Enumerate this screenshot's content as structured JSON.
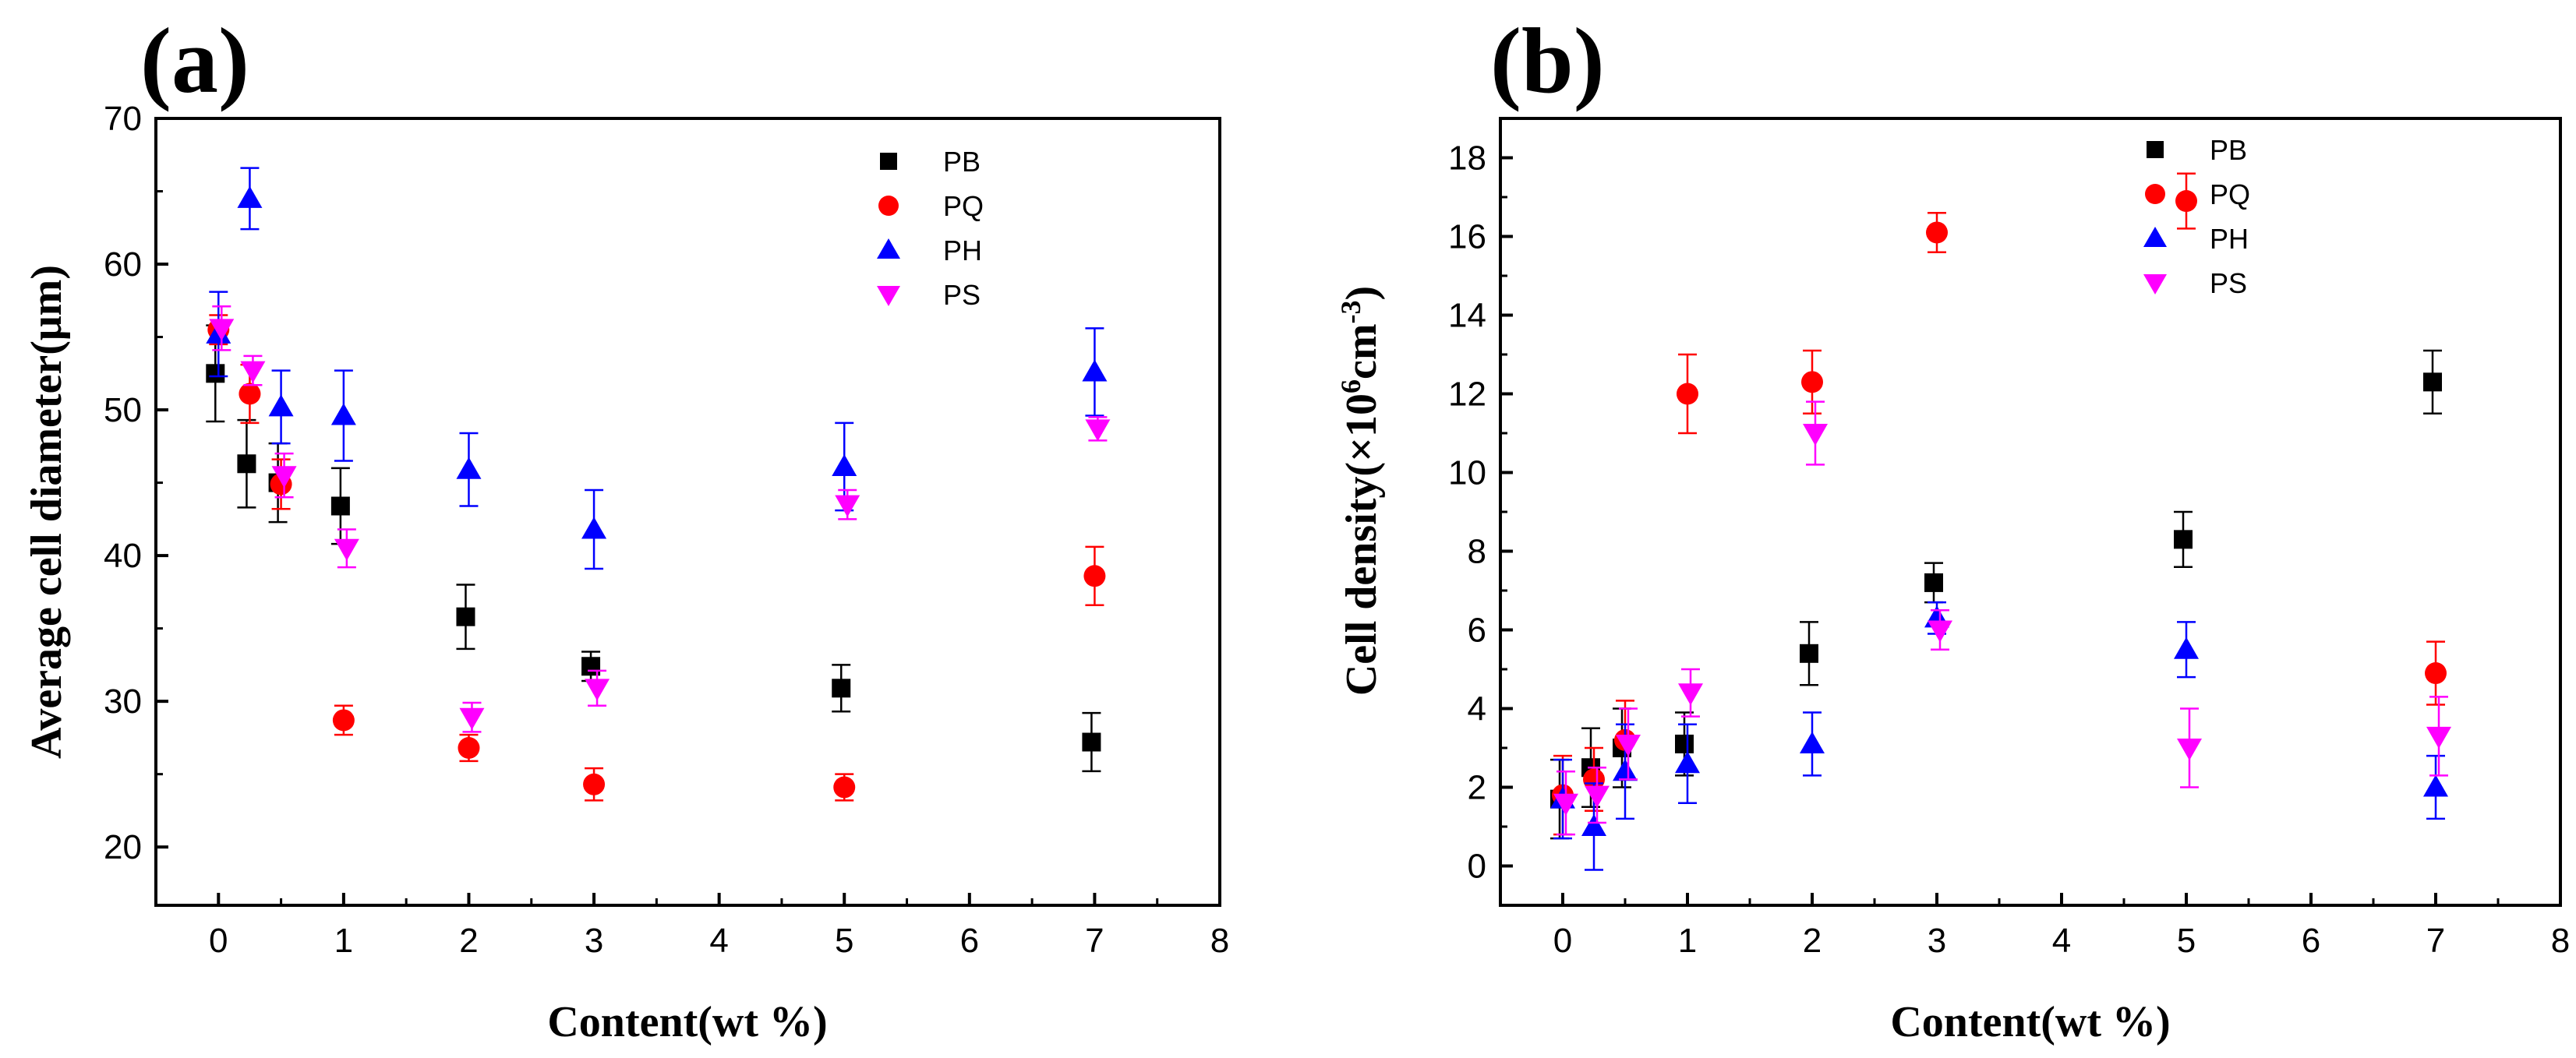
{
  "figure": {
    "panels": [
      "(a)",
      "(b)"
    ]
  },
  "chart_data": [
    {
      "type": "scatter",
      "panel_label": "(a)",
      "title": "",
      "xlabel": "Content(wt %)",
      "ylabel": "Average cell diameter(μm)",
      "xlim": [
        -0.5,
        8
      ],
      "ylim": [
        16,
        70
      ],
      "xticks": [
        "0",
        "1",
        "2",
        "3",
        "4",
        "5",
        "6",
        "7",
        "8"
      ],
      "yticks": [
        "20",
        "30",
        "40",
        "50",
        "60",
        "70"
      ],
      "legend_position": "top-right",
      "series": [
        {
          "name": "PB",
          "color": "#000000",
          "marker": "square",
          "points": [
            {
              "x": 0,
              "y": 52.5,
              "err": 3.3
            },
            {
              "x": 0.25,
              "y": 46.3,
              "err": 3.0
            },
            {
              "x": 0.5,
              "y": 45.0,
              "err": 2.7
            },
            {
              "x": 1,
              "y": 43.4,
              "err": 2.6
            },
            {
              "x": 2,
              "y": 35.8,
              "err": 2.2
            },
            {
              "x": 3,
              "y": 32.4,
              "err": 1.0
            },
            {
              "x": 5,
              "y": 30.9,
              "err": 1.6
            },
            {
              "x": 7,
              "y": 27.2,
              "err": 2.0
            }
          ]
        },
        {
          "name": "PQ",
          "color": "#ff0000",
          "marker": "circle",
          "points": [
            {
              "x": 0,
              "y": 55.5,
              "err": 1.0
            },
            {
              "x": 0.25,
              "y": 51.1,
              "err": 2.0
            },
            {
              "x": 0.5,
              "y": 44.9,
              "err": 1.7
            },
            {
              "x": 1,
              "y": 28.7,
              "err": 1.0
            },
            {
              "x": 2,
              "y": 26.8,
              "err": 0.9
            },
            {
              "x": 3,
              "y": 24.3,
              "err": 1.1
            },
            {
              "x": 5,
              "y": 24.1,
              "err": 0.9
            },
            {
              "x": 7,
              "y": 38.6,
              "err": 2.0
            }
          ]
        },
        {
          "name": "PH",
          "color": "#0000ff",
          "marker": "triangle-up",
          "points": [
            {
              "x": 0,
              "y": 55.2,
              "err": 2.9
            },
            {
              "x": 0.25,
              "y": 64.5,
              "err": 2.1
            },
            {
              "x": 0.5,
              "y": 50.2,
              "err": 2.5
            },
            {
              "x": 1,
              "y": 49.6,
              "err": 3.1
            },
            {
              "x": 2,
              "y": 45.9,
              "err": 2.5
            },
            {
              "x": 3,
              "y": 41.8,
              "err": 2.7
            },
            {
              "x": 5,
              "y": 46.1,
              "err": 3.0
            },
            {
              "x": 7,
              "y": 52.6,
              "err": 3.0
            }
          ]
        },
        {
          "name": "PS",
          "color": "#ff00ff",
          "marker": "triangle-down",
          "points": [
            {
              "x": 0,
              "y": 55.6,
              "err": 1.5
            },
            {
              "x": 0.25,
              "y": 52.7,
              "err": 1.0
            },
            {
              "x": 0.5,
              "y": 45.5,
              "err": 1.5
            },
            {
              "x": 1,
              "y": 40.5,
              "err": 1.3
            },
            {
              "x": 2,
              "y": 28.9,
              "err": 1.0
            },
            {
              "x": 3,
              "y": 30.9,
              "err": 1.2
            },
            {
              "x": 5,
              "y": 43.5,
              "err": 1.0
            },
            {
              "x": 7,
              "y": 48.7,
              "err": 0.8
            }
          ]
        }
      ]
    },
    {
      "type": "scatter",
      "panel_label": "(b)",
      "title": "",
      "xlabel": "Content(wt %)",
      "ylabel_parts": [
        "Cell density(×10",
        "6",
        "cm",
        "-3",
        ")"
      ],
      "xlim": [
        -0.5,
        8
      ],
      "ylim": [
        -1,
        19
      ],
      "xticks": [
        "0",
        "1",
        "2",
        "3",
        "4",
        "5",
        "6",
        "7",
        "8"
      ],
      "yticks": [
        "0",
        "2",
        "4",
        "6",
        "8",
        "10",
        "12",
        "14",
        "16",
        "18"
      ],
      "legend_position": "top-right",
      "series": [
        {
          "name": "PB",
          "color": "#000000",
          "marker": "square",
          "points": [
            {
              "x": 0,
              "y": 1.7,
              "err": 1.0
            },
            {
              "x": 0.25,
              "y": 2.5,
              "err": 1.0
            },
            {
              "x": 0.5,
              "y": 3.0,
              "err": 1.0
            },
            {
              "x": 1,
              "y": 3.1,
              "err": 0.8
            },
            {
              "x": 2,
              "y": 5.4,
              "err": 0.8
            },
            {
              "x": 3,
              "y": 7.2,
              "err": 0.5
            },
            {
              "x": 5,
              "y": 8.3,
              "err": 0.7
            },
            {
              "x": 7,
              "y": 12.3,
              "err": 0.8
            }
          ]
        },
        {
          "name": "PQ",
          "color": "#ff0000",
          "marker": "circle",
          "points": [
            {
              "x": 0,
              "y": 1.8,
              "err": 1.0
            },
            {
              "x": 0.25,
              "y": 2.2,
              "err": 0.8
            },
            {
              "x": 0.5,
              "y": 3.2,
              "err": 1.0
            },
            {
              "x": 1,
              "y": 12.0,
              "err": 1.0
            },
            {
              "x": 2,
              "y": 12.3,
              "err": 0.8
            },
            {
              "x": 3,
              "y": 16.1,
              "err": 0.5
            },
            {
              "x": 5,
              "y": 16.9,
              "err": 0.7
            },
            {
              "x": 7,
              "y": 4.9,
              "err": 0.8
            }
          ]
        },
        {
          "name": "PH",
          "color": "#0000ff",
          "marker": "triangle-up",
          "points": [
            {
              "x": 0,
              "y": 1.7,
              "err": 1.0
            },
            {
              "x": 0.25,
              "y": 1.0,
              "err": 1.1
            },
            {
              "x": 0.5,
              "y": 2.4,
              "err": 1.2
            },
            {
              "x": 1,
              "y": 2.6,
              "err": 1.0
            },
            {
              "x": 2,
              "y": 3.1,
              "err": 0.8
            },
            {
              "x": 3,
              "y": 6.3,
              "err": 0.4
            },
            {
              "x": 5,
              "y": 5.5,
              "err": 0.7
            },
            {
              "x": 7,
              "y": 2.0,
              "err": 0.8
            }
          ]
        },
        {
          "name": "PS",
          "color": "#ff00ff",
          "marker": "triangle-down",
          "points": [
            {
              "x": 0,
              "y": 1.6,
              "err": 0.8
            },
            {
              "x": 0.25,
              "y": 1.8,
              "err": 0.7
            },
            {
              "x": 0.5,
              "y": 3.1,
              "err": 0.9
            },
            {
              "x": 1,
              "y": 4.4,
              "err": 0.6
            },
            {
              "x": 2,
              "y": 11.0,
              "err": 0.8
            },
            {
              "x": 3,
              "y": 6.0,
              "err": 0.5
            },
            {
              "x": 5,
              "y": 3.0,
              "err": 1.0
            },
            {
              "x": 7,
              "y": 3.3,
              "err": 1.0
            }
          ]
        }
      ]
    }
  ]
}
